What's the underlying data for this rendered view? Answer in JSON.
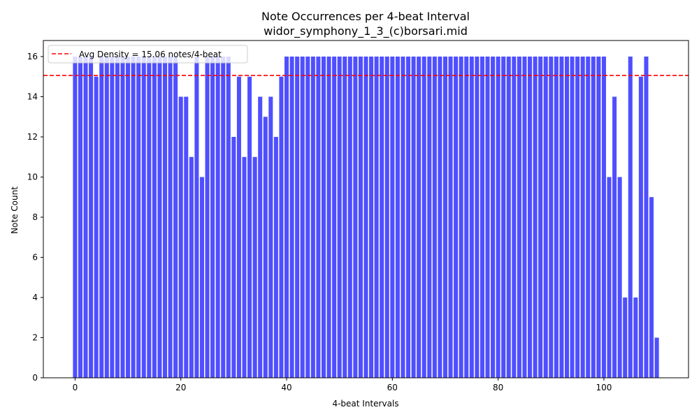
{
  "chart_data": {
    "type": "bar",
    "title": "Note Occurrences per 4-beat Interval",
    "subtitle": "widor_symphony_1_3_(c)borsari.mid",
    "xlabel": "4-beat Intervals",
    "ylabel": "Note Count",
    "xlim": [
      -6,
      116
    ],
    "ylim": [
      0,
      16.8
    ],
    "xticks": [
      0,
      20,
      40,
      60,
      80,
      100
    ],
    "yticks": [
      0,
      2,
      4,
      6,
      8,
      10,
      12,
      14,
      16
    ],
    "bar_color": "#4040ff",
    "x": [
      0,
      1,
      2,
      3,
      4,
      5,
      6,
      7,
      8,
      9,
      10,
      11,
      12,
      13,
      14,
      15,
      16,
      17,
      18,
      19,
      20,
      21,
      22,
      23,
      24,
      25,
      26,
      27,
      28,
      29,
      30,
      31,
      32,
      33,
      34,
      35,
      36,
      37,
      38,
      39,
      40,
      41,
      42,
      43,
      44,
      45,
      46,
      47,
      48,
      49,
      50,
      51,
      52,
      53,
      54,
      55,
      56,
      57,
      58,
      59,
      60,
      61,
      62,
      63,
      64,
      65,
      66,
      67,
      68,
      69,
      70,
      71,
      72,
      73,
      74,
      75,
      76,
      77,
      78,
      79,
      80,
      81,
      82,
      83,
      84,
      85,
      86,
      87,
      88,
      89,
      90,
      91,
      92,
      93,
      94,
      95,
      96,
      97,
      98,
      99,
      100,
      101,
      102,
      103,
      104,
      105,
      106,
      107,
      108,
      109,
      110
    ],
    "values": [
      16,
      16,
      16,
      16,
      15,
      16,
      16,
      16,
      16,
      16,
      16,
      16,
      16,
      16,
      16,
      16,
      16,
      16,
      16,
      16,
      14,
      14,
      11,
      16,
      10,
      16,
      16,
      16,
      16,
      16,
      12,
      15,
      11,
      15,
      11,
      14,
      13,
      14,
      12,
      15,
      16,
      16,
      16,
      16,
      16,
      16,
      16,
      16,
      16,
      16,
      16,
      16,
      16,
      16,
      16,
      16,
      16,
      16,
      16,
      16,
      16,
      16,
      16,
      16,
      16,
      16,
      16,
      16,
      16,
      16,
      16,
      16,
      16,
      16,
      16,
      16,
      16,
      16,
      16,
      16,
      16,
      16,
      16,
      16,
      16,
      16,
      16,
      16,
      16,
      16,
      16,
      16,
      16,
      16,
      16,
      16,
      16,
      16,
      16,
      16,
      16,
      10,
      14,
      10,
      4,
      16,
      4,
      15,
      16,
      9,
      2
    ],
    "reference_line": {
      "y": 15.06,
      "color": "#ff0000",
      "style": "dashed",
      "label": "Avg Density = 15.06 notes/4-beat"
    },
    "legend_position": "top-left",
    "grid": false
  }
}
